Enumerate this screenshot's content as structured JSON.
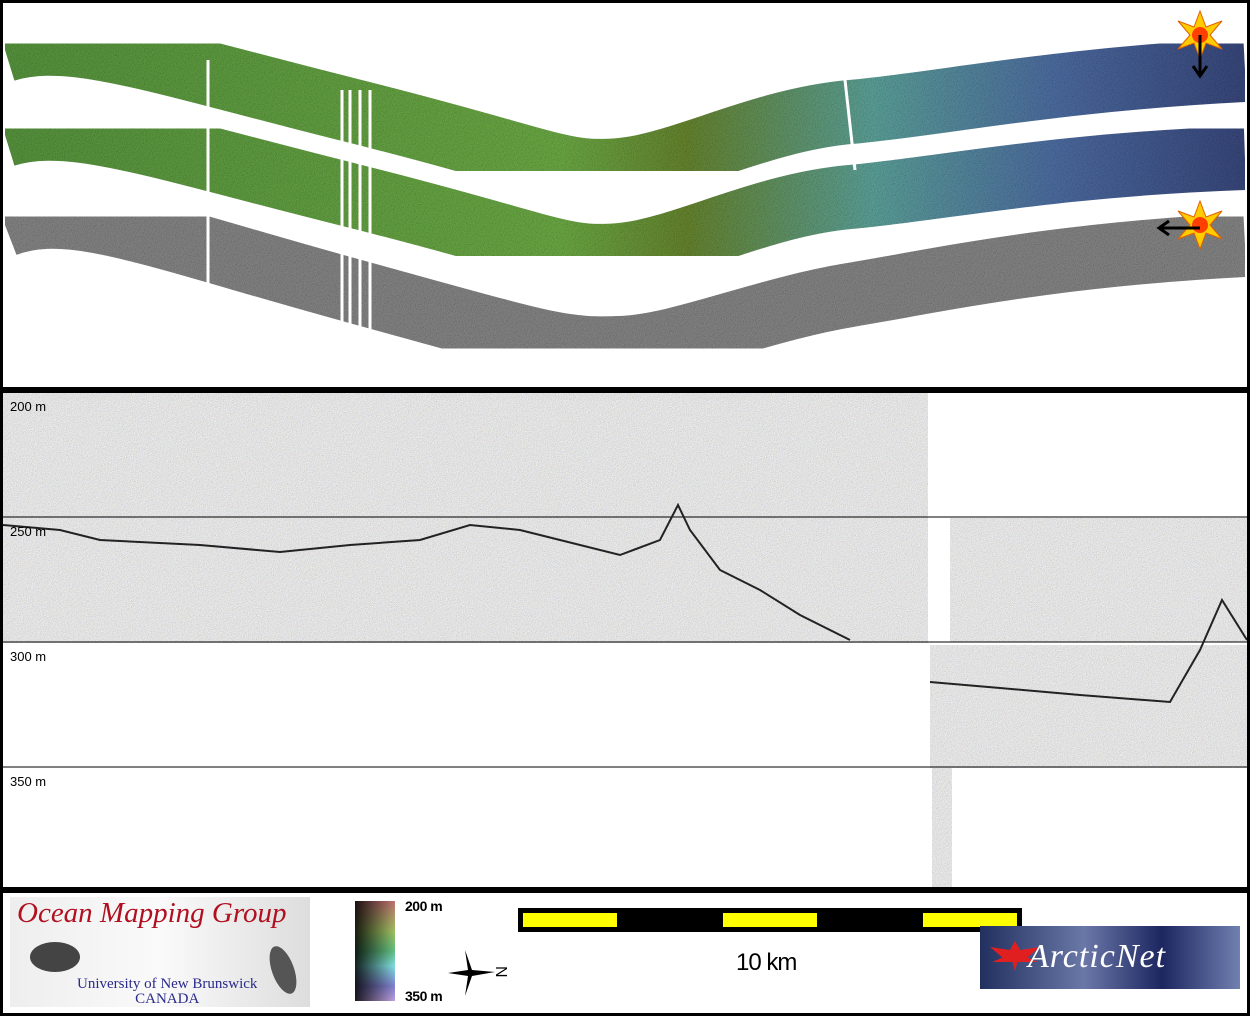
{
  "figure": {
    "depth_labels": [
      "200 m",
      "250 m",
      "300 m",
      "350 m"
    ],
    "colorbar": {
      "min_label": "200 m",
      "max_label": "350 m",
      "colors": [
        "#c07070",
        "#a0c060",
        "#60c080",
        "#80e0e0",
        "#8080d0",
        "#c0a0e0"
      ]
    },
    "scale_bar": {
      "label": "10 km",
      "colors": [
        "#000000",
        "#ffff00"
      ]
    },
    "north_arrow": {
      "label": "N",
      "icon": "north-arrow-icon"
    },
    "markers": [
      {
        "icon": "sun-star-icon",
        "arrow": "down"
      },
      {
        "icon": "sun-star-icon",
        "arrow": "left"
      }
    ],
    "logos": {
      "ocean_mapping_group": {
        "title": "Ocean Mapping Group",
        "subtitle": "University of New Brunswick",
        "country": "CANADA"
      },
      "arcticnet": {
        "text": "ArcticNet"
      }
    }
  }
}
